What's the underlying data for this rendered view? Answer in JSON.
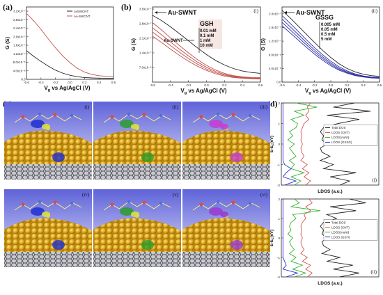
{
  "colors": {
    "black": "#222222",
    "red": "#c0504d",
    "blue": "#2f2fa8",
    "dos_black": "#222222",
    "dos_red": "#d9534f",
    "dos_green": "#33b233",
    "dos_blue": "#2a2ad6",
    "gold": "#d4a51c",
    "sky_top": "#5f63d8",
    "sky_bottom": "#dfe0f6"
  },
  "panel_labels": [
    "(a)",
    "(b)",
    "(c)",
    "(d)"
  ],
  "chart_data": [
    {
      "id": "a",
      "type": "line",
      "xlabel": "V",
      "xlabel_sub": "g",
      "xlabel_rest": " vs Ag/AgCl (V)",
      "ylabel": "G (S)",
      "xlim": [
        -0.6,
        0.6
      ],
      "ylim": [
        0,
        3.4e-07
      ],
      "xticks": [
        "-0.6",
        "-0.4",
        "-0.2",
        "0.0",
        "0.2",
        "0.4",
        "0.6"
      ],
      "xtick_values": [
        -0.6,
        -0.4,
        -0.2,
        0.0,
        0.2,
        0.4,
        0.6
      ],
      "yticks": [
        "0.0",
        "4.0x10⁻⁸",
        "8.0x10⁻⁸",
        "1.2x10⁻⁷",
        "1.6x10⁻⁷",
        "2.0x10⁻⁷",
        "2.4x10⁻⁷",
        "2.8x10⁻⁷",
        "3.2x10⁻⁷"
      ],
      "ytick_values": [
        0,
        4e-08,
        8e-08,
        1.2e-07,
        1.6e-07,
        2e-07,
        2.4e-07,
        2.8e-07,
        3.2e-07
      ],
      "legend": [
        "oxSWCNT",
        "Au-SWCNT"
      ],
      "series": [
        {
          "name": "oxSWCNT",
          "color": "black",
          "x": [
            -0.6,
            -0.5,
            -0.4,
            -0.3,
            -0.2,
            -0.1,
            0.0,
            0.1,
            0.2,
            0.3,
            0.4,
            0.5,
            0.6
          ],
          "y": [
            1.35e-07,
            1.08e-07,
            8.4e-08,
            6.2e-08,
            4.3e-08,
            2.9e-08,
            1.9e-08,
            1.25e-08,
            8.5e-09,
            6.5e-09,
            5.5e-09,
            5e-09,
            5e-09
          ]
        },
        {
          "name": "Au-SWCNT",
          "color": "red",
          "x": [
            -0.6,
            -0.5,
            -0.4,
            -0.3,
            -0.2,
            -0.1,
            0.0,
            0.1,
            0.2,
            0.3,
            0.4,
            0.5,
            0.6
          ],
          "y": [
            3.1e-07,
            2.75e-07,
            2.35e-07,
            1.9e-07,
            1.48e-07,
            1.1e-07,
            7.8e-08,
            5.2e-08,
            3.4e-08,
            2.3e-08,
            1.7e-08,
            1.4e-08,
            1.3e-08
          ]
        }
      ]
    },
    {
      "id": "b",
      "type": "line",
      "roman": "(i)",
      "xlabel": "V",
      "xlabel_sub": "g",
      "xlabel_rest": " vs Ag/AgCl (V)",
      "ylabel": "G (S)",
      "xlim": [
        -0.6,
        0.6
      ],
      "ylim": [
        0,
        3.6e-07
      ],
      "xticks": [
        "-0.6",
        "-0.4",
        "-0.2",
        "0.0",
        "0.2",
        "0.4",
        "0.6"
      ],
      "xtick_values": [
        -0.6,
        -0.4,
        -0.2,
        0.0,
        0.2,
        0.4,
        0.6
      ],
      "yticks": [
        "7.0x10⁻⁸",
        "1.4x10⁻⁷",
        "2.1x10⁻⁷",
        "2.8x10⁻⁷",
        "3.5x10⁻⁷"
      ],
      "ytick_values": [
        7e-08,
        1.4e-07,
        2.1e-07,
        2.8e-07,
        3.5e-07
      ],
      "annotation_top": "Au-SWNT",
      "annotation_mid": "Au-SWNT",
      "legend_title": "GSH",
      "legend": [
        "0.01 mM",
        "0.1 mM",
        "1 mM",
        "10 mM"
      ],
      "series": [
        {
          "name": "Au-SWNT",
          "color": "black",
          "x": [
            -0.6,
            -0.5,
            -0.4,
            -0.3,
            -0.2,
            -0.1,
            0.0,
            0.1,
            0.2,
            0.3,
            0.4,
            0.5,
            0.6
          ],
          "y": [
            3.2e-07,
            2.95e-07,
            2.65e-07,
            2.32e-07,
            1.98e-07,
            1.64e-07,
            1.32e-07,
            1.04e-07,
            8.2e-08,
            6.5e-08,
            5.3e-08,
            4.6e-08,
            4.2e-08
          ]
        },
        {
          "name": "0.01 mM",
          "color": "red",
          "x": [
            -0.6,
            -0.5,
            -0.4,
            -0.3,
            -0.2,
            -0.1,
            0.0,
            0.1,
            0.2,
            0.3,
            0.4,
            0.5,
            0.6
          ],
          "y": [
            2.85e-07,
            2.5e-07,
            2.12e-07,
            1.75e-07,
            1.4e-07,
            1.08e-07,
            8e-08,
            5.8e-08,
            4.2e-08,
            3.1e-08,
            2.5e-08,
            2.2e-08,
            2.1e-08
          ]
        },
        {
          "name": "0.1 mM",
          "color": "red",
          "x": [
            -0.6,
            -0.5,
            -0.4,
            -0.3,
            -0.2,
            -0.1,
            0.0,
            0.1,
            0.2,
            0.3,
            0.4,
            0.5,
            0.6
          ],
          "y": [
            2.6e-07,
            2.27e-07,
            1.92e-07,
            1.58e-07,
            1.26e-07,
            9.6e-08,
            7.1e-08,
            5.1e-08,
            3.7e-08,
            2.8e-08,
            2.3e-08,
            2e-08,
            1.9e-08
          ]
        },
        {
          "name": "1 mM",
          "color": "red",
          "x": [
            -0.6,
            -0.5,
            -0.4,
            -0.3,
            -0.2,
            -0.1,
            0.0,
            0.1,
            0.2,
            0.3,
            0.4,
            0.5,
            0.6
          ],
          "y": [
            2.4e-07,
            2.08e-07,
            1.75e-07,
            1.43e-07,
            1.13e-07,
            8.6e-08,
            6.3e-08,
            4.5e-08,
            3.3e-08,
            2.5e-08,
            2.1e-08,
            1.8e-08,
            1.7e-08
          ]
        },
        {
          "name": "10 mM",
          "color": "red",
          "x": [
            -0.6,
            -0.5,
            -0.4,
            -0.3,
            -0.2,
            -0.1,
            0.0,
            0.1,
            0.2,
            0.3,
            0.4,
            0.5,
            0.6
          ],
          "y": [
            2.2e-07,
            1.9e-07,
            1.58e-07,
            1.28e-07,
            1e-07,
            7.6e-08,
            5.6e-08,
            4e-08,
            2.9e-08,
            2.2e-08,
            1.8e-08,
            1.6e-08,
            1.5e-08
          ]
        }
      ]
    },
    {
      "id": "b2",
      "type": "line",
      "roman": "(ii)",
      "xlabel": "V",
      "xlabel_sub": "g",
      "xlabel_rest": " vs Ag/AgCl (V)",
      "ylabel": "G (S)",
      "xlim": [
        -0.6,
        0.6
      ],
      "ylim": [
        0,
        2.2e-07
      ],
      "xticks": [
        "-0.6",
        "-0.4",
        "-0.2",
        "0.0",
        "0.2",
        "0.4",
        "0.6"
      ],
      "xtick_values": [
        -0.6,
        -0.4,
        -0.2,
        0.0,
        0.2,
        0.4,
        0.6
      ],
      "yticks": [
        "0.0",
        "4.0x10⁻⁸",
        "8.0x10⁻⁸",
        "1.2x10⁻⁷",
        "1.6x10⁻⁷",
        "2.0x10⁻⁷"
      ],
      "ytick_values": [
        0,
        4e-08,
        8e-08,
        1.2e-07,
        1.6e-07,
        2e-07
      ],
      "annotation_top": "Au-SWNT",
      "legend_title": "GSSG",
      "legend": [
        "0.005 mM",
        "0.05 mM",
        "0.5 mM",
        "5 mM"
      ],
      "series": [
        {
          "name": "Au-SWNT",
          "color": "black",
          "x": [
            -0.6,
            -0.5,
            -0.4,
            -0.3,
            -0.2,
            -0.1,
            0.0,
            0.1,
            0.2,
            0.3,
            0.4,
            0.5,
            0.6
          ],
          "y": [
            2.1e-07,
            1.88e-07,
            1.64e-07,
            1.4e-07,
            1.16e-07,
            9.3e-08,
            7.2e-08,
            5.4e-08,
            4e-08,
            3e-08,
            2.3e-08,
            1.9e-08,
            1.7e-08
          ]
        },
        {
          "name": "0.005 mM",
          "color": "blue",
          "x": [
            -0.6,
            -0.5,
            -0.4,
            -0.3,
            -0.2,
            -0.1,
            0.0,
            0.1,
            0.2,
            0.3,
            0.4,
            0.5,
            0.6
          ],
          "y": [
            1.95e-07,
            1.72e-07,
            1.48e-07,
            1.24e-07,
            1.01e-07,
            8e-08,
            6.1e-08,
            4.5e-08,
            3.3e-08,
            2.4e-08,
            1.8e-08,
            1.5e-08,
            1.4e-08
          ]
        },
        {
          "name": "0.05 mM",
          "color": "blue",
          "x": [
            -0.6,
            -0.5,
            -0.4,
            -0.3,
            -0.2,
            -0.1,
            0.0,
            0.1,
            0.2,
            0.3,
            0.4,
            0.5,
            0.6
          ],
          "y": [
            1.85e-07,
            1.62e-07,
            1.39e-07,
            1.16e-07,
            9.4e-08,
            7.4e-08,
            5.6e-08,
            4.1e-08,
            3e-08,
            2.2e-08,
            1.7e-08,
            1.4e-08,
            1.3e-08
          ]
        },
        {
          "name": "0.5 mM",
          "color": "blue",
          "x": [
            -0.6,
            -0.5,
            -0.4,
            -0.3,
            -0.2,
            -0.1,
            0.0,
            0.1,
            0.2,
            0.3,
            0.4,
            0.5,
            0.6
          ],
          "y": [
            1.75e-07,
            1.53e-07,
            1.31e-07,
            1.09e-07,
            8.8e-08,
            6.9e-08,
            5.2e-08,
            3.8e-08,
            2.8e-08,
            2e-08,
            1.6e-08,
            1.3e-08,
            1.2e-08
          ]
        },
        {
          "name": "5 mM",
          "color": "blue",
          "x": [
            -0.6,
            -0.5,
            -0.4,
            -0.3,
            -0.2,
            -0.1,
            0.0,
            0.1,
            0.2,
            0.3,
            0.4,
            0.5,
            0.6
          ],
          "y": [
            1.65e-07,
            1.44e-07,
            1.23e-07,
            1.02e-07,
            8.2e-08,
            6.4e-08,
            4.8e-08,
            3.5e-08,
            2.6e-08,
            1.9e-08,
            1.5e-08,
            1.2e-08,
            1.1e-08
          ]
        }
      ]
    },
    {
      "id": "d1",
      "type": "line",
      "roman": "(i)",
      "xlabel": "LDOS (a.u.)",
      "ylabel": "E-E",
      "ylabel_sub": "F",
      "ylabel_rest": "(eV)",
      "ylim": [
        -2,
        2
      ],
      "yticks": [
        "2",
        "1",
        "0",
        "-1",
        "-2"
      ],
      "ytick_values": [
        2,
        1,
        0,
        -1,
        -2
      ],
      "legend": [
        "Total DOS",
        "LDOS (CNT)",
        "LDOS(AuNI)",
        "LDOS (GSSG)"
      ],
      "series": [
        {
          "name": "Total DOS",
          "color": "dos_black",
          "y": [
            2.0,
            1.8,
            1.6,
            1.4,
            1.2,
            1.0,
            0.8,
            0.6,
            0.4,
            0.2,
            0.0,
            -0.2,
            -0.4,
            -0.6,
            -0.8,
            -1.0,
            -1.2,
            -1.4,
            -1.6,
            -1.8,
            -2.0
          ],
          "x": [
            4.5,
            3.2,
            5.5,
            2.8,
            4.8,
            3.5,
            2.6,
            2.4,
            2.6,
            2.5,
            2.8,
            2.4,
            2.5,
            3.0,
            2.4,
            3.2,
            2.6,
            4.6,
            3.0,
            4.2,
            3.6
          ]
        },
        {
          "name": "LDOS (CNT)",
          "color": "dos_red",
          "y": [
            2.0,
            1.8,
            1.6,
            1.4,
            1.2,
            1.0,
            0.8,
            0.6,
            0.4,
            0.2,
            0.0,
            -0.2,
            -0.4,
            -0.6,
            -0.8,
            -1.0,
            -1.2,
            -1.4,
            -1.6,
            -1.8,
            -2.0
          ],
          "x": [
            1.8,
            1.6,
            1.7,
            1.5,
            1.7,
            1.4,
            1.3,
            1.2,
            1.25,
            1.2,
            1.3,
            1.2,
            1.25,
            1.4,
            1.2,
            1.6,
            1.3,
            1.7,
            1.4,
            1.8,
            1.5
          ]
        },
        {
          "name": "LDOS(AuNI)",
          "color": "dos_green",
          "y": [
            2.0,
            1.8,
            1.6,
            1.4,
            1.2,
            1.0,
            0.8,
            0.6,
            0.4,
            0.2,
            0.0,
            -0.2,
            -0.4,
            -0.6,
            -0.8,
            -1.0,
            -1.2,
            -1.4,
            -1.6,
            -1.8,
            -2.0
          ],
          "x": [
            0.9,
            2.2,
            0.8,
            1.4,
            0.6,
            1.0,
            0.9,
            0.5,
            0.7,
            0.4,
            0.8,
            0.5,
            0.7,
            0.9,
            0.5,
            0.8,
            0.6,
            1.4,
            0.6,
            1.2,
            0.8
          ]
        },
        {
          "name": "LDOS (GSSG)",
          "color": "dos_blue",
          "y": [
            2.0,
            1.8,
            1.6,
            1.4,
            1.2,
            1.0,
            0.8,
            0.6,
            0.4,
            0.2,
            0.0,
            -0.2,
            -0.4,
            -0.6,
            -0.8,
            -1.0,
            -1.2,
            -1.4,
            -1.6,
            -1.8,
            -2.0
          ],
          "x": [
            0.1,
            0.1,
            0.1,
            0.1,
            0.1,
            0.1,
            0.1,
            0.1,
            0.1,
            0.1,
            0.1,
            0.1,
            0.1,
            0.1,
            0.1,
            0.2,
            0.6,
            0.3,
            0.1,
            0.9,
            0.2
          ]
        }
      ]
    },
    {
      "id": "d2",
      "type": "line",
      "roman": "(ii)",
      "xlabel": "LDOS (a.u.)",
      "ylabel": "E-E",
      "ylabel_sub": "F",
      "ylabel_rest": "(eV)",
      "ylim": [
        -2,
        2
      ],
      "yticks": [
        "2",
        "1",
        "0",
        "-1",
        "-2"
      ],
      "ytick_values": [
        2,
        1,
        0,
        -1,
        -2
      ],
      "legend": [
        "Total DOS",
        "LDOS (CNT)",
        "LDOS(AuNI)",
        "LDOS (GSH)"
      ],
      "series": [
        {
          "name": "Total DOS",
          "color": "dos_black",
          "y": [
            2.0,
            1.8,
            1.6,
            1.4,
            1.2,
            1.0,
            0.8,
            0.6,
            0.4,
            0.2,
            0.0,
            -0.2,
            -0.4,
            -0.6,
            -0.8,
            -1.0,
            -1.2,
            -1.4,
            -1.6,
            -1.8,
            -2.0
          ],
          "x": [
            4.2,
            5.2,
            3.0,
            4.6,
            2.8,
            3.4,
            2.6,
            2.4,
            2.6,
            2.5,
            2.8,
            2.5,
            2.6,
            3.0,
            2.5,
            3.6,
            2.8,
            4.4,
            3.2,
            4.8,
            3.6
          ]
        },
        {
          "name": "LDOS (CNT)",
          "color": "dos_red",
          "y": [
            2.0,
            1.8,
            1.6,
            1.4,
            1.2,
            1.0,
            0.8,
            0.6,
            0.4,
            0.2,
            0.0,
            -0.2,
            -0.4,
            -0.6,
            -0.8,
            -1.0,
            -1.2,
            -1.4,
            -1.6,
            -1.8,
            -2.0
          ],
          "x": [
            1.7,
            1.9,
            1.5,
            1.8,
            1.4,
            1.5,
            1.3,
            1.2,
            1.25,
            1.2,
            1.3,
            1.2,
            1.25,
            1.4,
            1.2,
            1.6,
            1.3,
            1.8,
            1.5,
            1.9,
            1.6
          ]
        },
        {
          "name": "LDOS(AuNI)",
          "color": "dos_green",
          "y": [
            2.0,
            1.8,
            1.6,
            1.4,
            1.2,
            1.0,
            0.8,
            0.6,
            0.4,
            0.2,
            0.0,
            -0.2,
            -0.4,
            -0.6,
            -0.8,
            -1.0,
            -1.2,
            -1.4,
            -1.6,
            -1.8,
            -2.0
          ],
          "x": [
            0.8,
            1.1,
            0.6,
            2.4,
            0.7,
            0.9,
            0.6,
            0.5,
            0.6,
            0.4,
            0.7,
            0.5,
            0.6,
            0.8,
            0.5,
            0.9,
            0.6,
            1.3,
            0.7,
            1.5,
            0.8
          ]
        },
        {
          "name": "LDOS (GSH)",
          "color": "dos_blue",
          "y": [
            2.0,
            1.8,
            1.6,
            1.4,
            1.2,
            1.0,
            0.8,
            0.6,
            0.4,
            0.2,
            0.0,
            -0.2,
            -0.4,
            -0.6,
            -0.8,
            -1.0,
            -1.2,
            -1.4,
            -1.6,
            -1.8,
            -2.0
          ],
          "x": [
            0.1,
            0.1,
            0.1,
            0.1,
            0.1,
            0.1,
            0.1,
            0.1,
            0.1,
            0.1,
            0.1,
            0.1,
            0.1,
            0.1,
            0.1,
            0.1,
            0.2,
            0.3,
            0.1,
            1.0,
            0.3
          ]
        }
      ]
    }
  ],
  "molecular_panels": {
    "labels": [
      "(i)",
      "(ii)",
      "(iii)",
      "(iv)",
      "(v)",
      "(vi)"
    ]
  }
}
